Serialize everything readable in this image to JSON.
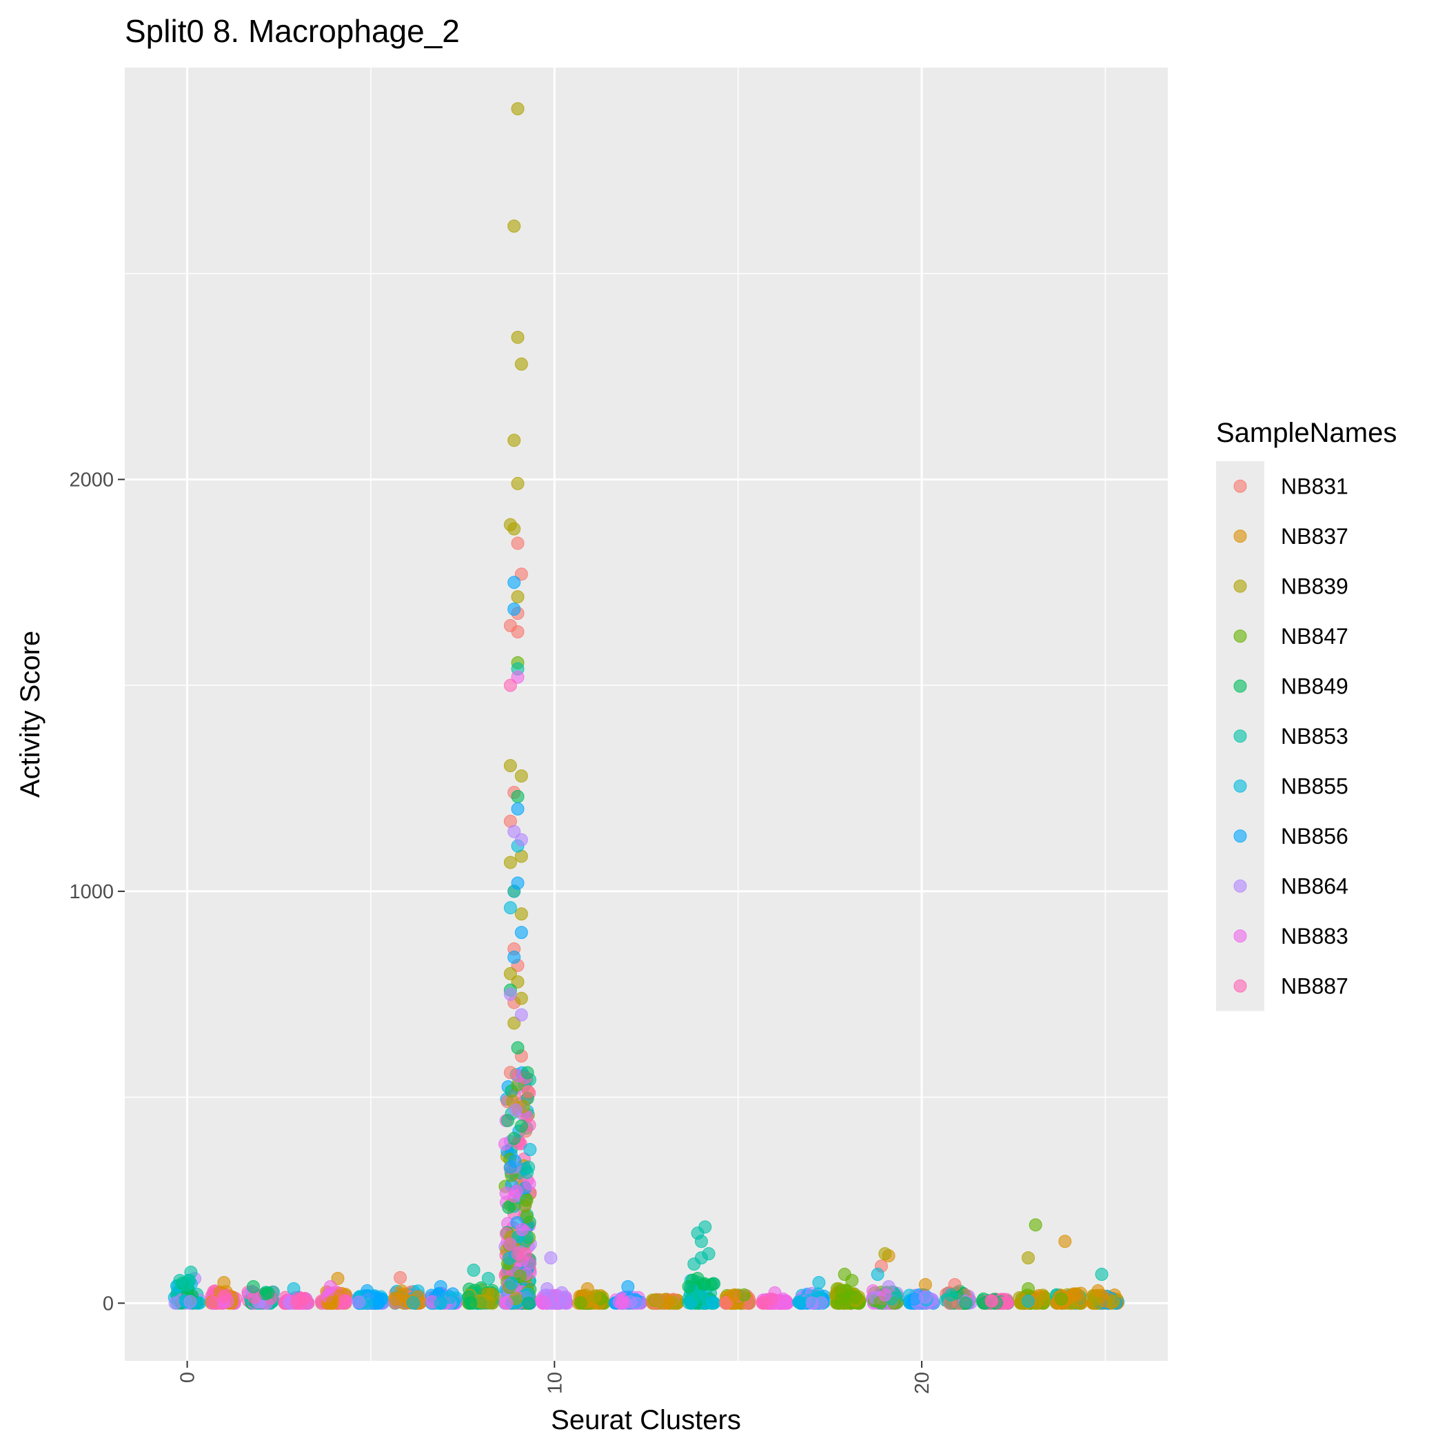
{
  "chart_data": {
    "type": "scatter",
    "title": "Split0 8. Macrophage_2",
    "xlabel": "Seurat Clusters",
    "ylabel": "Activity Score",
    "xlim": [
      -1.7,
      26.7
    ],
    "ylim": [
      -140,
      3000
    ],
    "x_ticks": [
      "0",
      "10",
      "20"
    ],
    "x_tick_values": [
      0,
      10,
      20
    ],
    "y_ticks": [
      "0",
      "1000",
      "2000"
    ],
    "y_tick_values": [
      0,
      1000,
      2000
    ],
    "grid": true,
    "legend": {
      "title": "SampleNames",
      "placement": "right",
      "entries": [
        {
          "name": "NB831",
          "color": "#F8766D"
        },
        {
          "name": "NB837",
          "color": "#DB8E00"
        },
        {
          "name": "NB839",
          "color": "#AEA200"
        },
        {
          "name": "NB847",
          "color": "#64B200"
        },
        {
          "name": "NB849",
          "color": "#00BD5C"
        },
        {
          "name": "NB853",
          "color": "#00C1A7"
        },
        {
          "name": "NB855",
          "color": "#00BADE"
        },
        {
          "name": "NB856",
          "color": "#00A6FF"
        },
        {
          "name": "NB864",
          "color": "#B385FF"
        },
        {
          "name": "NB883",
          "color": "#EF67EB"
        },
        {
          "name": "NB887",
          "color": "#FF63B6"
        }
      ]
    },
    "series": [
      {
        "name": "NB831",
        "points": [
          [
            5.8,
            62
          ],
          [
            9.0,
            1845
          ],
          [
            9.1,
            1770
          ],
          [
            9.0,
            1675
          ],
          [
            8.8,
            1645
          ],
          [
            9.0,
            1630
          ],
          [
            8.9,
            1240
          ],
          [
            8.8,
            1170
          ],
          [
            8.9,
            860
          ],
          [
            9.0,
            820
          ],
          [
            8.9,
            730
          ],
          [
            9.1,
            600
          ],
          [
            8.8,
            560
          ],
          [
            18.9,
            90
          ],
          [
            20.9,
            45
          ]
        ]
      },
      {
        "name": "NB837",
        "points": [
          [
            1.0,
            50
          ],
          [
            4.1,
            60
          ],
          [
            10.9,
            35
          ],
          [
            14.9,
            20
          ],
          [
            19.1,
            115
          ],
          [
            20.1,
            45
          ],
          [
            23.9,
            150
          ],
          [
            23.8,
            18
          ],
          [
            24.8,
            30
          ]
        ]
      },
      {
        "name": "NB839",
        "points": [
          [
            9.0,
            2900
          ],
          [
            8.9,
            2615
          ],
          [
            9.0,
            2345
          ],
          [
            9.1,
            2280
          ],
          [
            8.9,
            2095
          ],
          [
            9.0,
            1990
          ],
          [
            8.8,
            1890
          ],
          [
            8.9,
            1880
          ],
          [
            9.0,
            1715
          ],
          [
            8.8,
            1305
          ],
          [
            9.1,
            1280
          ],
          [
            8.8,
            1070
          ],
          [
            9.1,
            1085
          ],
          [
            8.9,
            1000
          ],
          [
            9.1,
            945
          ],
          [
            8.8,
            800
          ],
          [
            9.0,
            780
          ],
          [
            9.1,
            740
          ],
          [
            8.9,
            680
          ],
          [
            19.0,
            120
          ],
          [
            22.9,
            110
          ]
        ]
      },
      {
        "name": "NB847",
        "points": [
          [
            9.0,
            1555
          ],
          [
            17.9,
            70
          ],
          [
            18.1,
            55
          ],
          [
            17.8,
            30
          ],
          [
            18.2,
            15
          ],
          [
            23.1,
            190
          ],
          [
            22.9,
            35
          ],
          [
            23.8,
            10
          ]
        ]
      },
      {
        "name": "NB849",
        "points": [
          [
            9.0,
            1230
          ],
          [
            1.8,
            40
          ],
          [
            2.2,
            25
          ],
          [
            8.8,
            760
          ],
          [
            9.0,
            620
          ],
          [
            9.1,
            430
          ],
          [
            8.9,
            400
          ],
          [
            13.9,
            60
          ]
        ]
      },
      {
        "name": "NB853",
        "points": [
          [
            0.1,
            75
          ],
          [
            -0.2,
            55
          ],
          [
            0.0,
            45
          ],
          [
            7.8,
            80
          ],
          [
            8.2,
            60
          ],
          [
            13.9,
            170
          ],
          [
            14.1,
            185
          ],
          [
            14.0,
            150
          ],
          [
            14.2,
            120
          ],
          [
            14.0,
            110
          ],
          [
            13.8,
            95
          ],
          [
            9.0,
            1540
          ],
          [
            24.9,
            70
          ],
          [
            20.8,
            20
          ]
        ]
      },
      {
        "name": "NB855",
        "points": [
          [
            2.9,
            35
          ],
          [
            9.0,
            1110
          ],
          [
            8.9,
            1000
          ],
          [
            8.8,
            960
          ],
          [
            17.2,
            50
          ],
          [
            18.8,
            70
          ],
          [
            22.9,
            5
          ]
        ]
      },
      {
        "name": "NB856",
        "points": [
          [
            6.9,
            40
          ],
          [
            8.9,
            1750
          ],
          [
            8.9,
            1685
          ],
          [
            9.0,
            1200
          ],
          [
            9.0,
            1020
          ],
          [
            9.1,
            900
          ],
          [
            8.9,
            840
          ],
          [
            8.8,
            330
          ],
          [
            4.9,
            30
          ],
          [
            12.0,
            40
          ],
          [
            19.8,
            10
          ]
        ]
      },
      {
        "name": "NB864",
        "points": [
          [
            9.9,
            110
          ],
          [
            9.8,
            35
          ],
          [
            10.2,
            25
          ],
          [
            9.1,
            1125
          ],
          [
            8.9,
            1145
          ],
          [
            8.8,
            750
          ],
          [
            9.1,
            700
          ],
          [
            19.1,
            40
          ],
          [
            20.1,
            15
          ]
        ]
      },
      {
        "name": "NB883",
        "points": [
          [
            3.9,
            40
          ],
          [
            9.0,
            1520
          ],
          [
            8.9,
            260
          ],
          [
            16.0,
            25
          ],
          [
            19.0,
            20
          ]
        ]
      },
      {
        "name": "NB887",
        "points": [
          [
            8.8,
            1500
          ],
          [
            9.0,
            120
          ],
          [
            1.0,
            15
          ],
          [
            3.0,
            10
          ],
          [
            15.9,
            10
          ],
          [
            21.9,
            5
          ]
        ]
      }
    ],
    "clusters": [
      {
        "x": 0,
        "max": 60,
        "colors": [
          "NB853",
          "NB855",
          "NB849",
          "NB864"
        ]
      },
      {
        "x": 1,
        "max": 30,
        "colors": [
          "NB887",
          "NB883",
          "NB837"
        ]
      },
      {
        "x": 2,
        "max": 30,
        "colors": [
          "NB849",
          "NB853",
          "NB864",
          "NB887"
        ]
      },
      {
        "x": 3,
        "max": 15,
        "colors": [
          "NB887",
          "NB883",
          "NB864"
        ]
      },
      {
        "x": 4,
        "max": 30,
        "colors": [
          "NB883",
          "NB887",
          "NB837"
        ]
      },
      {
        "x": 5,
        "max": 20,
        "colors": [
          "NB856",
          "NB855",
          "NB864"
        ]
      },
      {
        "x": 6,
        "max": 30,
        "colors": [
          "NB831",
          "NB837",
          "NB855"
        ]
      },
      {
        "x": 7,
        "max": 25,
        "colors": [
          "NB856",
          "NB855",
          "NB864",
          "NB883"
        ]
      },
      {
        "x": 8,
        "max": 40,
        "colors": [
          "NB853",
          "NB849",
          "NB839"
        ]
      },
      {
        "x": 9,
        "max": 560,
        "colors": [
          "NB839",
          "NB853",
          "NB849",
          "NB856",
          "NB855",
          "NB864",
          "NB883",
          "NB887",
          "NB831",
          "NB847"
        ]
      },
      {
        "x": 10,
        "max": 20,
        "colors": [
          "NB864",
          "NB883"
        ]
      },
      {
        "x": 11,
        "max": 20,
        "colors": [
          "NB839",
          "NB837",
          "NB847"
        ]
      },
      {
        "x": 12,
        "max": 15,
        "colors": [
          "NB864",
          "NB883",
          "NB856"
        ]
      },
      {
        "x": 13,
        "max": 10,
        "colors": [
          "NB837",
          "NB839",
          "NB831"
        ]
      },
      {
        "x": 14,
        "max": 60,
        "colors": [
          "NB853",
          "NB849",
          "NB855"
        ]
      },
      {
        "x": 15,
        "max": 20,
        "colors": [
          "NB837",
          "NB847",
          "NB831"
        ]
      },
      {
        "x": 16,
        "max": 10,
        "colors": [
          "NB887",
          "NB883"
        ]
      },
      {
        "x": 17,
        "max": 25,
        "colors": [
          "NB856",
          "NB855",
          "NB864"
        ]
      },
      {
        "x": 18,
        "max": 35,
        "colors": [
          "NB847",
          "NB839"
        ]
      },
      {
        "x": 19,
        "max": 30,
        "colors": [
          "NB853",
          "NB847",
          "NB864",
          "NB883"
        ]
      },
      {
        "x": 20,
        "max": 20,
        "colors": [
          "NB856",
          "NB855",
          "NB864"
        ]
      },
      {
        "x": 21,
        "max": 30,
        "colors": [
          "NB853",
          "NB849",
          "NB864",
          "NB831"
        ]
      },
      {
        "x": 22,
        "max": 10,
        "colors": [
          "NB887",
          "NB849"
        ]
      },
      {
        "x": 23,
        "max": 20,
        "colors": [
          "NB847",
          "NB839",
          "NB837"
        ]
      },
      {
        "x": 24,
        "max": 25,
        "colors": [
          "NB837",
          "NB853",
          "NB839"
        ]
      },
      {
        "x": 25,
        "max": 20,
        "colors": [
          "NB856",
          "NB839",
          "NB837"
        ]
      }
    ]
  }
}
